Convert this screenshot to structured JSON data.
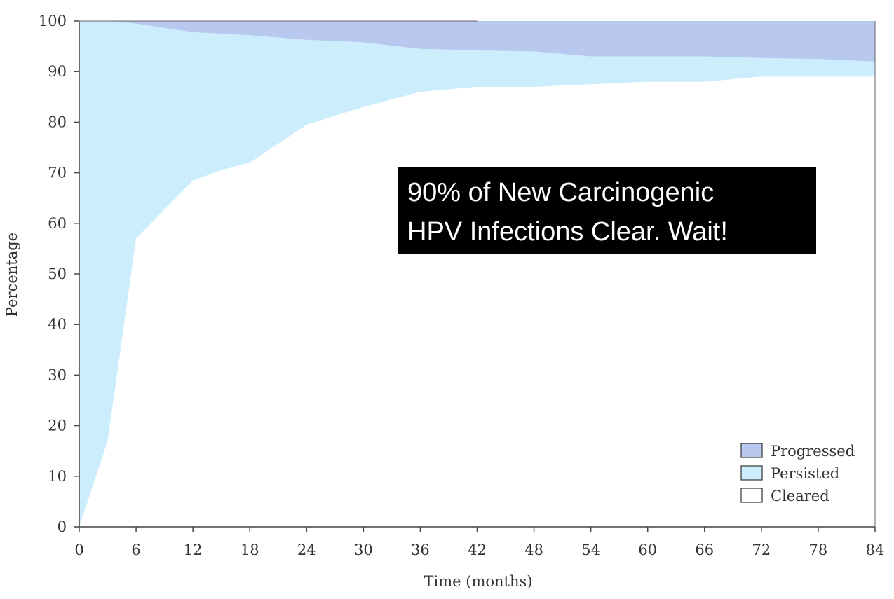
{
  "chart_data": {
    "type": "area",
    "stacked": true,
    "xlabel": "Time (months)",
    "ylabel": "Percentage",
    "xlim": [
      0,
      84
    ],
    "ylim": [
      0,
      100
    ],
    "xticks": [
      0,
      6,
      12,
      18,
      24,
      30,
      36,
      42,
      48,
      54,
      60,
      66,
      72,
      78,
      84
    ],
    "yticks": [
      0,
      10,
      20,
      30,
      40,
      50,
      60,
      70,
      80,
      90,
      100
    ],
    "grid": false,
    "legend_position": "bottom-right",
    "x": [
      0,
      3,
      6,
      12,
      15,
      18,
      24,
      30,
      36,
      42,
      48,
      54,
      60,
      66,
      72,
      78,
      84
    ],
    "series": [
      {
        "name": "Cleared",
        "color": "#ffffff",
        "cumulative_top": [
          0,
          17,
          57,
          68.5,
          70.5,
          72,
          79.5,
          83,
          86,
          87,
          87,
          87.5,
          88,
          88,
          89,
          89,
          89
        ]
      },
      {
        "name": "Persisted",
        "color": "#cceefc",
        "cumulative_top": [
          100,
          100,
          99.5,
          97.8,
          97.5,
          97.2,
          96.3,
          95.8,
          94.5,
          94.2,
          94,
          93,
          93,
          93,
          92.7,
          92.5,
          92
        ]
      },
      {
        "name": "Progressed",
        "color": "#b9c8ee",
        "cumulative_top": [
          100,
          100,
          100,
          100,
          100,
          100,
          100,
          100,
          100,
          100,
          100,
          100,
          100,
          100,
          100,
          100,
          100
        ]
      }
    ],
    "legend_order": [
      "Progressed",
      "Persisted",
      "Cleared"
    ],
    "annotation": {
      "lines": [
        "90% of New Carcinogenic",
        "HPV Infections Clear.  Wait!"
      ],
      "background": "#000000",
      "color": "#ffffff"
    }
  }
}
